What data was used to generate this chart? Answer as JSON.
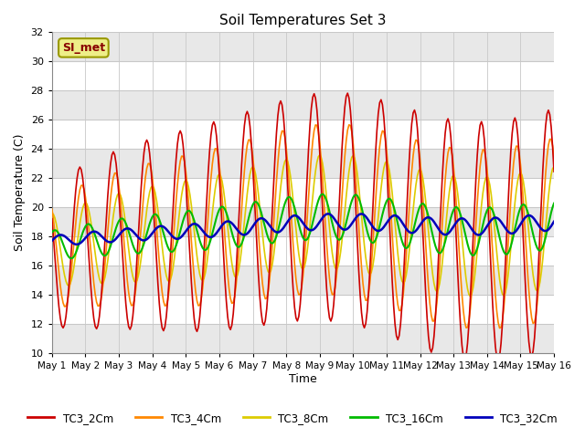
{
  "title": "Soil Temperatures Set 3",
  "xlabel": "Time",
  "ylabel": "Soil Temperature (C)",
  "ylim": [
    10,
    32
  ],
  "series": {
    "TC3_2Cm": {
      "color": "#CC0000",
      "lw": 1.2
    },
    "TC3_4Cm": {
      "color": "#FF8800",
      "lw": 1.2
    },
    "TC3_8Cm": {
      "color": "#DDCC00",
      "lw": 1.2
    },
    "TC3_16Cm": {
      "color": "#00BB00",
      "lw": 1.5
    },
    "TC3_32Cm": {
      "color": "#0000BB",
      "lw": 1.8
    }
  },
  "legend_label": "SI_met",
  "fig_bg": "#FFFFFF",
  "plot_bg": "#FFFFFF",
  "band_color": "#E8E8E8",
  "grid_color": "#C8C8C8",
  "x_tick_labels": [
    "May 1",
    "May 2",
    "May 3",
    "May 4",
    "May 5",
    "May 6",
    "May 7",
    "May 8",
    "May 9",
    "May 10",
    "May 11",
    "May 12",
    "May 13",
    "May 14",
    "May 15",
    "May 16"
  ]
}
